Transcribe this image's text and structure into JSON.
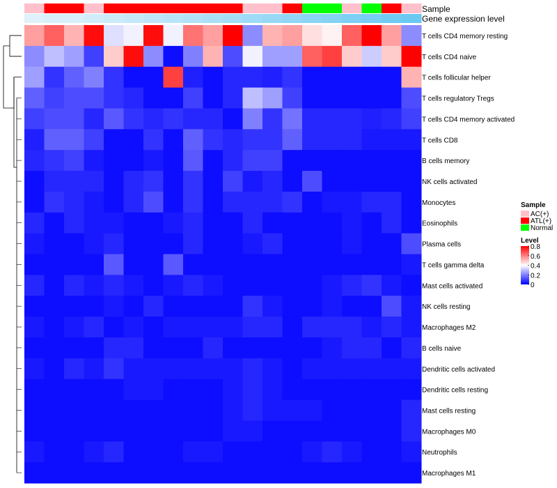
{
  "chart_data": {
    "type": "heatmap",
    "title": "",
    "annotations": {
      "sample_label": "Sample",
      "expression_label": "Gene expression level"
    },
    "columns": 20,
    "sample_groups": [
      "AC(+)",
      "ATL(+)",
      "ATL(+)",
      "AC(+)",
      "ATL(+)",
      "ATL(+)",
      "ATL(+)",
      "ATL(+)",
      "ATL(+)",
      "ATL(+)",
      "ATL(+)",
      "AC(+)",
      "AC(+)",
      "ATL(+)",
      "Normal",
      "Normal",
      "AC(+)",
      "Normal",
      "ATL(+)",
      "AC(+)"
    ],
    "expression_levels": [
      0.05,
      0.1,
      0.1,
      0.15,
      0.2,
      0.25,
      0.3,
      0.35,
      0.4,
      0.45,
      0.5,
      0.55,
      0.6,
      0.65,
      0.7,
      0.75,
      0.8,
      0.85,
      0.9,
      0.95
    ],
    "rows": [
      "T cells CD4 memory resting",
      "T cells CD4 naive",
      "T cells follicular helper",
      "T cells regulatory  Tregs",
      "T cells CD4 memory activated",
      "T cells CD8",
      "B cells memory",
      "NK cells activated",
      "Monocytes",
      "Eosinophils",
      "Plasma cells",
      "T cells gamma delta",
      "Mast cells activated",
      "NK cells resting",
      "Macrophages M2",
      "B cells naive",
      "Dendritic cells activated",
      "Dendritic cells resting",
      "Mast cells resting",
      "Macrophages M0",
      "Neutrophils",
      "Macrophages M1"
    ],
    "values": [
      [
        0.55,
        0.65,
        0.52,
        0.78,
        0.35,
        0.38,
        0.78,
        0.38,
        0.62,
        0.55,
        0.8,
        0.22,
        0.52,
        0.55,
        0.45,
        0.42,
        0.65,
        0.8,
        0.55,
        0.22
      ],
      [
        0.22,
        0.3,
        0.25,
        0.1,
        0.48,
        0.78,
        0.22,
        0.02,
        0.2,
        0.52,
        0.12,
        0.38,
        0.25,
        0.25,
        0.65,
        0.7,
        0.48,
        0.32,
        0.48,
        0.8
      ],
      [
        0.25,
        0.08,
        0.15,
        0.2,
        0.08,
        0.02,
        0.02,
        0.7,
        0.05,
        0.02,
        0.06,
        0.06,
        0.05,
        0.08,
        0.02,
        0.02,
        0.02,
        0.02,
        0.02,
        0.52
      ],
      [
        0.15,
        0.1,
        0.12,
        0.12,
        0.08,
        0.06,
        0.02,
        0.02,
        0.1,
        0.02,
        0.06,
        0.3,
        0.25,
        0.1,
        0.02,
        0.02,
        0.02,
        0.02,
        0.02,
        0.12
      ],
      [
        0.1,
        0.12,
        0.12,
        0.06,
        0.14,
        0.08,
        0.06,
        0.08,
        0.06,
        0.06,
        0.02,
        0.2,
        0.08,
        0.18,
        0.06,
        0.06,
        0.06,
        0.05,
        0.06,
        0.1
      ],
      [
        0.05,
        0.15,
        0.15,
        0.1,
        0.02,
        0.02,
        0.08,
        0.02,
        0.15,
        0.08,
        0.06,
        0.08,
        0.08,
        0.15,
        0.06,
        0.06,
        0.06,
        0.04,
        0.04,
        0.04
      ],
      [
        0.06,
        0.08,
        0.1,
        0.04,
        0.02,
        0.02,
        0.04,
        0.02,
        0.14,
        0.02,
        0.06,
        0.1,
        0.1,
        0.02,
        0.02,
        0.02,
        0.02,
        0.02,
        0.02,
        0.02
      ],
      [
        0.02,
        0.06,
        0.06,
        0.06,
        0.02,
        0.06,
        0.08,
        0.02,
        0.08,
        0.02,
        0.1,
        0.04,
        0.06,
        0.02,
        0.12,
        0.02,
        0.02,
        0.02,
        0.02,
        0.02
      ],
      [
        0.02,
        0.08,
        0.06,
        0.04,
        0.02,
        0.06,
        0.12,
        0.02,
        0.08,
        0.02,
        0.06,
        0.06,
        0.06,
        0.08,
        0.02,
        0.04,
        0.04,
        0.06,
        0.06,
        0.02
      ],
      [
        0.06,
        0.02,
        0.06,
        0.04,
        0.04,
        0.02,
        0.02,
        0.04,
        0.06,
        0.02,
        0.02,
        0.06,
        0.02,
        0.02,
        0.02,
        0.02,
        0.04,
        0.02,
        0.06,
        0.02
      ],
      [
        0.04,
        0.02,
        0.02,
        0.04,
        0.06,
        0.02,
        0.02,
        0.02,
        0.06,
        0.02,
        0.02,
        0.04,
        0.06,
        0.02,
        0.02,
        0.02,
        0.04,
        0.02,
        0.02,
        0.12
      ],
      [
        0.02,
        0.02,
        0.02,
        0.02,
        0.14,
        0.02,
        0.02,
        0.14,
        0.02,
        0.02,
        0.02,
        0.02,
        0.02,
        0.02,
        0.02,
        0.02,
        0.02,
        0.02,
        0.02,
        0.04
      ],
      [
        0.06,
        0.02,
        0.06,
        0.04,
        0.06,
        0.04,
        0.02,
        0.04,
        0.06,
        0.04,
        0.02,
        0.02,
        0.02,
        0.02,
        0.02,
        0.04,
        0.06,
        0.08,
        0.04,
        0.02
      ],
      [
        0.02,
        0.02,
        0.02,
        0.02,
        0.04,
        0.02,
        0.06,
        0.02,
        0.02,
        0.02,
        0.02,
        0.08,
        0.04,
        0.02,
        0.02,
        0.04,
        0.02,
        0.02,
        0.12,
        0.04
      ],
      [
        0.04,
        0.02,
        0.04,
        0.06,
        0.02,
        0.04,
        0.02,
        0.04,
        0.04,
        0.04,
        0.04,
        0.06,
        0.06,
        0.02,
        0.06,
        0.06,
        0.06,
        0.04,
        0.06,
        0.04
      ],
      [
        0.02,
        0.02,
        0.02,
        0.02,
        0.06,
        0.06,
        0.02,
        0.02,
        0.02,
        0.06,
        0.02,
        0.02,
        0.02,
        0.02,
        0.02,
        0.04,
        0.06,
        0.06,
        0.02,
        0.06
      ],
      [
        0.04,
        0.02,
        0.06,
        0.04,
        0.08,
        0.04,
        0.04,
        0.04,
        0.04,
        0.04,
        0.04,
        0.06,
        0.04,
        0.02,
        0.04,
        0.04,
        0.04,
        0.04,
        0.04,
        0.04
      ],
      [
        0.02,
        0.02,
        0.02,
        0.02,
        0.02,
        0.04,
        0.04,
        0.02,
        0.02,
        0.02,
        0.04,
        0.06,
        0.04,
        0.02,
        0.02,
        0.02,
        0.02,
        0.02,
        0.02,
        0.02
      ],
      [
        0.02,
        0.02,
        0.02,
        0.02,
        0.02,
        0.02,
        0.02,
        0.02,
        0.02,
        0.02,
        0.04,
        0.06,
        0.04,
        0.04,
        0.04,
        0.02,
        0.02,
        0.02,
        0.02,
        0.06
      ],
      [
        0.02,
        0.02,
        0.02,
        0.02,
        0.02,
        0.02,
        0.02,
        0.02,
        0.02,
        0.02,
        0.04,
        0.04,
        0.02,
        0.02,
        0.02,
        0.02,
        0.02,
        0.02,
        0.02,
        0.06
      ],
      [
        0.04,
        0.02,
        0.02,
        0.04,
        0.06,
        0.02,
        0.02,
        0.02,
        0.04,
        0.04,
        0.02,
        0.02,
        0.02,
        0.02,
        0.04,
        0.06,
        0.04,
        0.02,
        0.02,
        0.04
      ],
      [
        0.02,
        0.02,
        0.02,
        0.02,
        0.02,
        0.02,
        0.02,
        0.02,
        0.02,
        0.02,
        0.02,
        0.02,
        0.02,
        0.02,
        0.02,
        0.02,
        0.02,
        0.02,
        0.02,
        0.02
      ]
    ],
    "legend": {
      "sample_title": "Sample",
      "sample_entries": [
        "AC(+)",
        "ATL(+)",
        "Normal"
      ],
      "level_title": "Level",
      "level_ticks": [
        "0.8",
        "0.6",
        "0.4",
        "0.2",
        "0"
      ],
      "level_range": [
        0,
        0.8
      ]
    },
    "colors": {
      "low": "#0000ff",
      "mid": "#ffffff",
      "high": "#ff0000",
      "AC(+)": "#ffc0cb",
      "ATL(+)": "#ff0000",
      "Normal": "#00ff00",
      "expr_low": "#e6f4fb",
      "expr_high": "#63c6f1"
    }
  }
}
